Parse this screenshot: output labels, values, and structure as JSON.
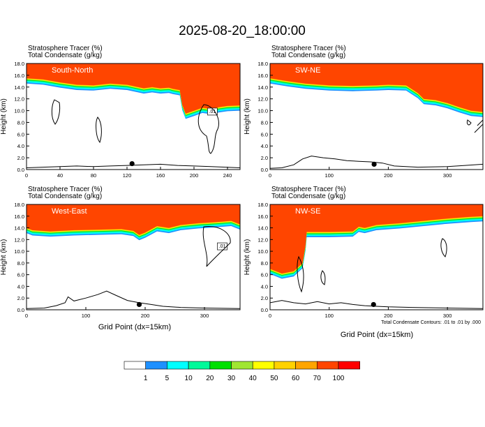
{
  "figure": {
    "title": "2025-08-20_18:00:00",
    "xlabel": "Grid Point (dx=15km)",
    "contour_note": "Total Condensate Contours: .01 to .01 by .000"
  },
  "colorbar": {
    "labels": [
      "1",
      "5",
      "10",
      "20",
      "30",
      "40",
      "50",
      "60",
      "70",
      "100"
    ],
    "colors": [
      "#ffffff",
      "#1e90ff",
      "#00ffff",
      "#00fa9a",
      "#00e000",
      "#a0e632",
      "#ffff00",
      "#ffd200",
      "#ffa500",
      "#ff4500",
      "#ff0000"
    ]
  },
  "chart_data": [
    {
      "type": "heatmap",
      "name": "South-North",
      "header_line1": "Stratosphere Tracer   (%)",
      "header_line2": "Total Condensate   (g/kg)",
      "panel_label": "South-North",
      "ylabel": "Height (km)",
      "xlim": [
        0,
        255
      ],
      "ylim": [
        0,
        18
      ],
      "xticks": [
        0,
        40,
        80,
        120,
        160,
        200,
        240
      ],
      "yticks": [
        "0.0",
        "2.0",
        "4.0",
        "6.0",
        "8.0",
        "10.0",
        "12.0",
        "14.0",
        "16.0",
        "18.0"
      ],
      "tropopause": [
        [
          0,
          15.5
        ],
        [
          20,
          15.3
        ],
        [
          40,
          14.8
        ],
        [
          60,
          14.4
        ],
        [
          80,
          14.3
        ],
        [
          100,
          14.6
        ],
        [
          120,
          14.4
        ],
        [
          140,
          13.8
        ],
        [
          150,
          14.0
        ],
        [
          160,
          13.8
        ],
        [
          170,
          13.9
        ],
        [
          175,
          13.7
        ],
        [
          183,
          13.5
        ],
        [
          186,
          11.0
        ],
        [
          190,
          9.5
        ],
        [
          200,
          10.0
        ],
        [
          210,
          10.5
        ],
        [
          220,
          10.3
        ],
        [
          230,
          10.6
        ],
        [
          240,
          10.8
        ],
        [
          255,
          10.9
        ]
      ],
      "terrain": [
        [
          0,
          0.3
        ],
        [
          20,
          0.4
        ],
        [
          40,
          0.5
        ],
        [
          60,
          0.6
        ],
        [
          80,
          0.5
        ],
        [
          100,
          0.6
        ],
        [
          120,
          0.7
        ],
        [
          140,
          0.8
        ],
        [
          160,
          0.9
        ],
        [
          180,
          0.7
        ],
        [
          200,
          0.6
        ],
        [
          220,
          0.5
        ],
        [
          255,
          0.3
        ]
      ],
      "marker": [
        126,
        1.0
      ],
      "box_label": ".01"
    },
    {
      "type": "heatmap",
      "name": "SW-NE",
      "header_line1": "Stratosphere Tracer   (%)",
      "header_line2": "Total Condensate   (g/kg)",
      "panel_label": "SW-NE",
      "ylabel": "Height (km)",
      "xlim": [
        0,
        360
      ],
      "ylim": [
        0,
        18
      ],
      "xticks": [
        0,
        100,
        200,
        300
      ],
      "yticks": [
        "0.0",
        "2.0",
        "4.0",
        "6.0",
        "8.0",
        "10.0",
        "12.0",
        "14.0",
        "16.0",
        "18.0"
      ],
      "tropopause": [
        [
          0,
          15.5
        ],
        [
          30,
          15.0
        ],
        [
          60,
          14.6
        ],
        [
          100,
          14.3
        ],
        [
          140,
          14.2
        ],
        [
          180,
          14.3
        ],
        [
          200,
          14.4
        ],
        [
          230,
          14.3
        ],
        [
          250,
          13.0
        ],
        [
          260,
          12.0
        ],
        [
          280,
          11.8
        ],
        [
          300,
          11.3
        ],
        [
          320,
          10.6
        ],
        [
          340,
          10.0
        ],
        [
          360,
          9.8
        ]
      ],
      "terrain": [
        [
          0,
          0.2
        ],
        [
          20,
          0.3
        ],
        [
          40,
          0.8
        ],
        [
          55,
          1.8
        ],
        [
          70,
          2.3
        ],
        [
          90,
          2.0
        ],
        [
          110,
          1.8
        ],
        [
          130,
          1.5
        ],
        [
          150,
          1.4
        ],
        [
          170,
          1.3
        ],
        [
          190,
          1.1
        ],
        [
          210,
          0.6
        ],
        [
          250,
          0.4
        ],
        [
          300,
          0.5
        ],
        [
          330,
          0.7
        ],
        [
          360,
          0.9
        ]
      ],
      "marker": [
        176,
        0.9
      ],
      "box_label": ""
    },
    {
      "type": "heatmap",
      "name": "West-East",
      "header_line1": "Stratosphere Tracer   (%)",
      "header_line2": "Total Condensate   (g/kg)",
      "panel_label": "West-East",
      "ylabel": "Height (km)",
      "xlim": [
        0,
        360
      ],
      "ylim": [
        0,
        18
      ],
      "xticks": [
        0,
        100,
        200,
        300
      ],
      "yticks": [
        "0.0",
        "2.0",
        "4.0",
        "6.0",
        "8.0",
        "10.0",
        "12.0",
        "14.0",
        "16.0",
        "18.0"
      ],
      "tropopause": [
        [
          0,
          14.0
        ],
        [
          10,
          13.6
        ],
        [
          40,
          13.4
        ],
        [
          80,
          13.6
        ],
        [
          120,
          13.7
        ],
        [
          160,
          13.8
        ],
        [
          180,
          13.5
        ],
        [
          190,
          12.8
        ],
        [
          200,
          13.2
        ],
        [
          220,
          14.3
        ],
        [
          240,
          14.0
        ],
        [
          260,
          14.5
        ],
        [
          290,
          14.8
        ],
        [
          320,
          15.0
        ],
        [
          345,
          15.2
        ],
        [
          360,
          14.6
        ]
      ],
      "terrain": [
        [
          0,
          0.2
        ],
        [
          30,
          0.3
        ],
        [
          50,
          0.7
        ],
        [
          65,
          1.2
        ],
        [
          70,
          2.2
        ],
        [
          80,
          1.5
        ],
        [
          100,
          2.0
        ],
        [
          120,
          2.6
        ],
        [
          135,
          3.2
        ],
        [
          150,
          2.5
        ],
        [
          170,
          1.6
        ],
        [
          190,
          1.2
        ],
        [
          210,
          0.9
        ],
        [
          230,
          0.6
        ],
        [
          260,
          0.4
        ],
        [
          300,
          0.3
        ],
        [
          360,
          0.2
        ]
      ],
      "marker": [
        190,
        0.9
      ],
      "box_label": ".01"
    },
    {
      "type": "heatmap",
      "name": "NW-SE",
      "header_line1": "Stratosphere Tracer   (%)",
      "header_line2": "Total Condensate   (g/kg)",
      "panel_label": "NW-SE",
      "ylabel": "Height (km)",
      "xlim": [
        0,
        360
      ],
      "ylim": [
        0,
        18
      ],
      "xticks": [
        0,
        100,
        200,
        300
      ],
      "yticks": [
        "0.0",
        "2.0",
        "4.0",
        "6.0",
        "8.0",
        "10.0",
        "12.0",
        "14.0",
        "16.0",
        "18.0"
      ],
      "tropopause": [
        [
          0,
          7.0
        ],
        [
          20,
          6.2
        ],
        [
          40,
          6.6
        ],
        [
          55,
          8.0
        ],
        [
          60,
          11.0
        ],
        [
          62,
          13.3
        ],
        [
          100,
          13.3
        ],
        [
          140,
          13.4
        ],
        [
          150,
          14.2
        ],
        [
          160,
          14.0
        ],
        [
          180,
          14.5
        ],
        [
          220,
          14.8
        ],
        [
          260,
          15.2
        ],
        [
          300,
          15.6
        ],
        [
          340,
          15.9
        ],
        [
          360,
          16.0
        ]
      ],
      "terrain": [
        [
          0,
          1.2
        ],
        [
          20,
          1.6
        ],
        [
          40,
          1.2
        ],
        [
          60,
          1.0
        ],
        [
          80,
          1.4
        ],
        [
          100,
          1.0
        ],
        [
          120,
          1.2
        ],
        [
          140,
          0.9
        ],
        [
          160,
          0.7
        ],
        [
          180,
          0.6
        ],
        [
          200,
          0.5
        ],
        [
          240,
          0.4
        ],
        [
          300,
          0.3
        ],
        [
          360,
          0.2
        ]
      ],
      "marker": [
        175,
        0.9
      ],
      "box_label": ""
    }
  ]
}
